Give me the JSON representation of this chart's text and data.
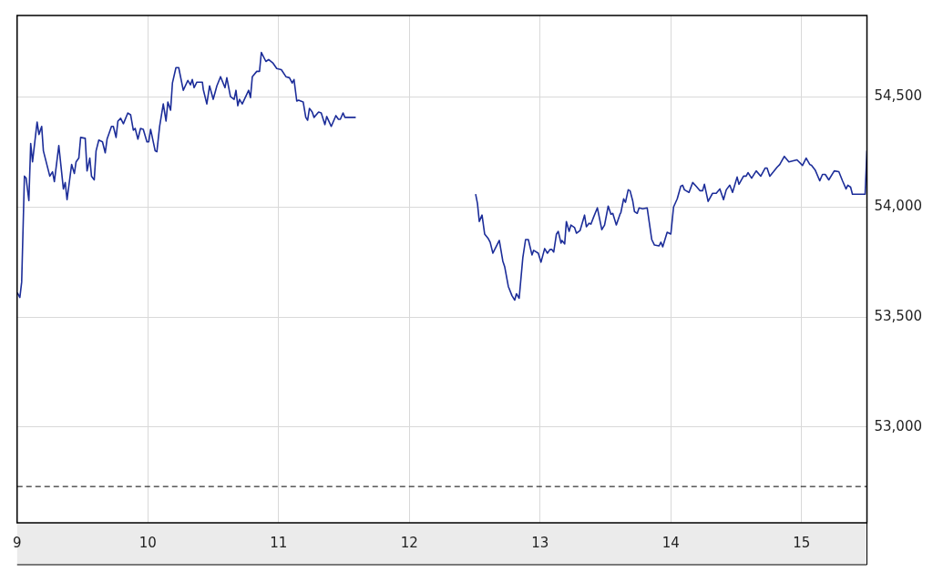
{
  "chart_data": {
    "type": "line",
    "xlim": [
      9,
      15.5
    ],
    "xticks": [
      9,
      10,
      11,
      12,
      13,
      14,
      15
    ],
    "ylim": [
      52565,
      54870
    ],
    "yticks": [
      {
        "value": 53000,
        "label": "53,000"
      },
      {
        "value": 53500,
        "label": "53,500"
      },
      {
        "value": 54000,
        "label": "54,000"
      },
      {
        "value": 54500,
        "label": "54,500"
      }
    ],
    "grid": true,
    "legend": false,
    "marker": "none",
    "line_style": "solid",
    "ref_lines": [
      {
        "axis": "y",
        "value": 52730,
        "color": "#000000",
        "line_style": "dashed"
      }
    ],
    "series": [
      {
        "color": "#1c2d99",
        "x": [
          9.002,
          9.021,
          9.035,
          9.056,
          9.069,
          9.09,
          9.104,
          9.118,
          9.153,
          9.167,
          9.188,
          9.201,
          9.25,
          9.271,
          9.285,
          9.319,
          9.354,
          9.368,
          9.382,
          9.417,
          9.438,
          9.451,
          9.472,
          9.486,
          9.521,
          9.535,
          9.556,
          9.569,
          9.59,
          9.604,
          9.625,
          9.653,
          9.674,
          9.688,
          9.722,
          9.736,
          9.757,
          9.771,
          9.792,
          9.813,
          9.847,
          9.868,
          9.889,
          9.903,
          9.924,
          9.944,
          9.965,
          9.993,
          10.007,
          10.021,
          10.056,
          10.069,
          10.09,
          10.118,
          10.139,
          10.153,
          10.174,
          10.188,
          10.215,
          10.236,
          10.271,
          10.306,
          10.326,
          10.34,
          10.354,
          10.375,
          10.417,
          10.424,
          10.451,
          10.472,
          10.5,
          10.528,
          10.556,
          10.59,
          10.604,
          10.632,
          10.66,
          10.674,
          10.688,
          10.701,
          10.722,
          10.771,
          10.785,
          10.799,
          10.833,
          10.854,
          10.868,
          10.903,
          10.924,
          10.958,
          10.986,
          11.021,
          11.056,
          11.083,
          11.104,
          11.118,
          11.139,
          11.153,
          11.188,
          11.208,
          11.222,
          11.236,
          11.257,
          11.271,
          11.306,
          11.326,
          11.354,
          11.368,
          11.403,
          11.438,
          11.458,
          11.472,
          11.493,
          11.507,
          11.59,
          12,
          12.507,
          12.521,
          12.535,
          12.556,
          12.576,
          12.604,
          12.618,
          12.639,
          12.66,
          12.688,
          12.715,
          12.729,
          12.757,
          12.785,
          12.806,
          12.819,
          12.84,
          12.868,
          12.889,
          12.91,
          12.938,
          12.951,
          12.986,
          13.007,
          13.035,
          13.056,
          13.076,
          13.09,
          13.104,
          13.125,
          13.139,
          13.16,
          13.167,
          13.188,
          13.201,
          13.222,
          13.236,
          13.264,
          13.278,
          13.306,
          13.34,
          13.354,
          13.375,
          13.389,
          13.41,
          13.438,
          13.472,
          13.493,
          13.521,
          13.542,
          13.556,
          13.583,
          13.611,
          13.618,
          13.639,
          13.653,
          13.674,
          13.688,
          13.708,
          13.722,
          13.743,
          13.757,
          13.785,
          13.819,
          13.854,
          13.875,
          13.91,
          13.924,
          13.938,
          13.972,
          14.0,
          14.021,
          14.049,
          14.076,
          14.09,
          14.104,
          14.139,
          14.167,
          14.194,
          14.222,
          14.243,
          14.257,
          14.285,
          14.319,
          14.347,
          14.375,
          14.403,
          14.424,
          14.451,
          14.472,
          14.507,
          14.521,
          14.556,
          14.576,
          14.59,
          14.618,
          14.653,
          14.688,
          14.722,
          14.736,
          14.757,
          14.785,
          14.813,
          14.833,
          14.868,
          14.903,
          14.965,
          15.007,
          15.035,
          15.063,
          15.076,
          15.104,
          15.139,
          15.16,
          15.181,
          15.208,
          15.25,
          15.285,
          15.313,
          15.34,
          15.354,
          15.375,
          15.389,
          15.486,
          15.5
        ],
        "values": [
          53610,
          53589,
          53659,
          54140,
          54131,
          54029,
          54288,
          54205,
          54386,
          54329,
          54366,
          54255,
          54140,
          54160,
          54115,
          54279,
          54082,
          54111,
          54033,
          54193,
          54152,
          54205,
          54222,
          54316,
          54312,
          54164,
          54222,
          54140,
          54123,
          54255,
          54304,
          54296,
          54246,
          54308,
          54366,
          54366,
          54316,
          54390,
          54403,
          54378,
          54427,
          54419,
          54349,
          54357,
          54308,
          54357,
          54353,
          54296,
          54296,
          54353,
          54255,
          54251,
          54366,
          54468,
          54390,
          54477,
          54440,
          54563,
          54633,
          54633,
          54530,
          54575,
          54555,
          54579,
          54542,
          54567,
          54567,
          54534,
          54468,
          54550,
          54489,
          54550,
          54592,
          54542,
          54587,
          54501,
          54489,
          54530,
          54460,
          54489,
          54468,
          54530,
          54497,
          54592,
          54616,
          54616,
          54702,
          54661,
          54670,
          54653,
          54629,
          54624,
          54592,
          54587,
          54563,
          54579,
          54481,
          54485,
          54477,
          54407,
          54394,
          54448,
          54431,
          54407,
          54431,
          54427,
          54374,
          54411,
          54366,
          54415,
          54398,
          54398,
          54427,
          54407,
          54407,
          null,
          54058,
          54016,
          53934,
          53963,
          53877,
          53856,
          53840,
          53790,
          53815,
          53848,
          53754,
          53729,
          53639,
          53597,
          53577,
          53606,
          53585,
          53770,
          53852,
          53852,
          53782,
          53803,
          53790,
          53749,
          53811,
          53790,
          53807,
          53807,
          53795,
          53877,
          53889,
          53836,
          53848,
          53832,
          53934,
          53889,
          53918,
          53906,
          53881,
          53893,
          53963,
          53910,
          53926,
          53922,
          53955,
          53996,
          53897,
          53918,
          54004,
          53967,
          53971,
          53918,
          53967,
          53975,
          54037,
          54021,
          54078,
          54074,
          54029,
          53979,
          53971,
          53996,
          53992,
          53996,
          53852,
          53827,
          53823,
          53840,
          53819,
          53885,
          53877,
          54000,
          54037,
          54094,
          54099,
          54078,
          54066,
          54111,
          54094,
          54074,
          54074,
          54103,
          54025,
          54062,
          54062,
          54082,
          54033,
          54078,
          54099,
          54066,
          54136,
          54103,
          54140,
          54140,
          54156,
          54131,
          54164,
          54140,
          54177,
          54177,
          54140,
          54160,
          54181,
          54193,
          54230,
          54205,
          54214,
          54189,
          54222,
          54193,
          54189,
          54168,
          54119,
          54148,
          54148,
          54123,
          54164,
          54160,
          54119,
          54082,
          54099,
          54090,
          54058,
          54058,
          54255
        ]
      }
    ]
  }
}
